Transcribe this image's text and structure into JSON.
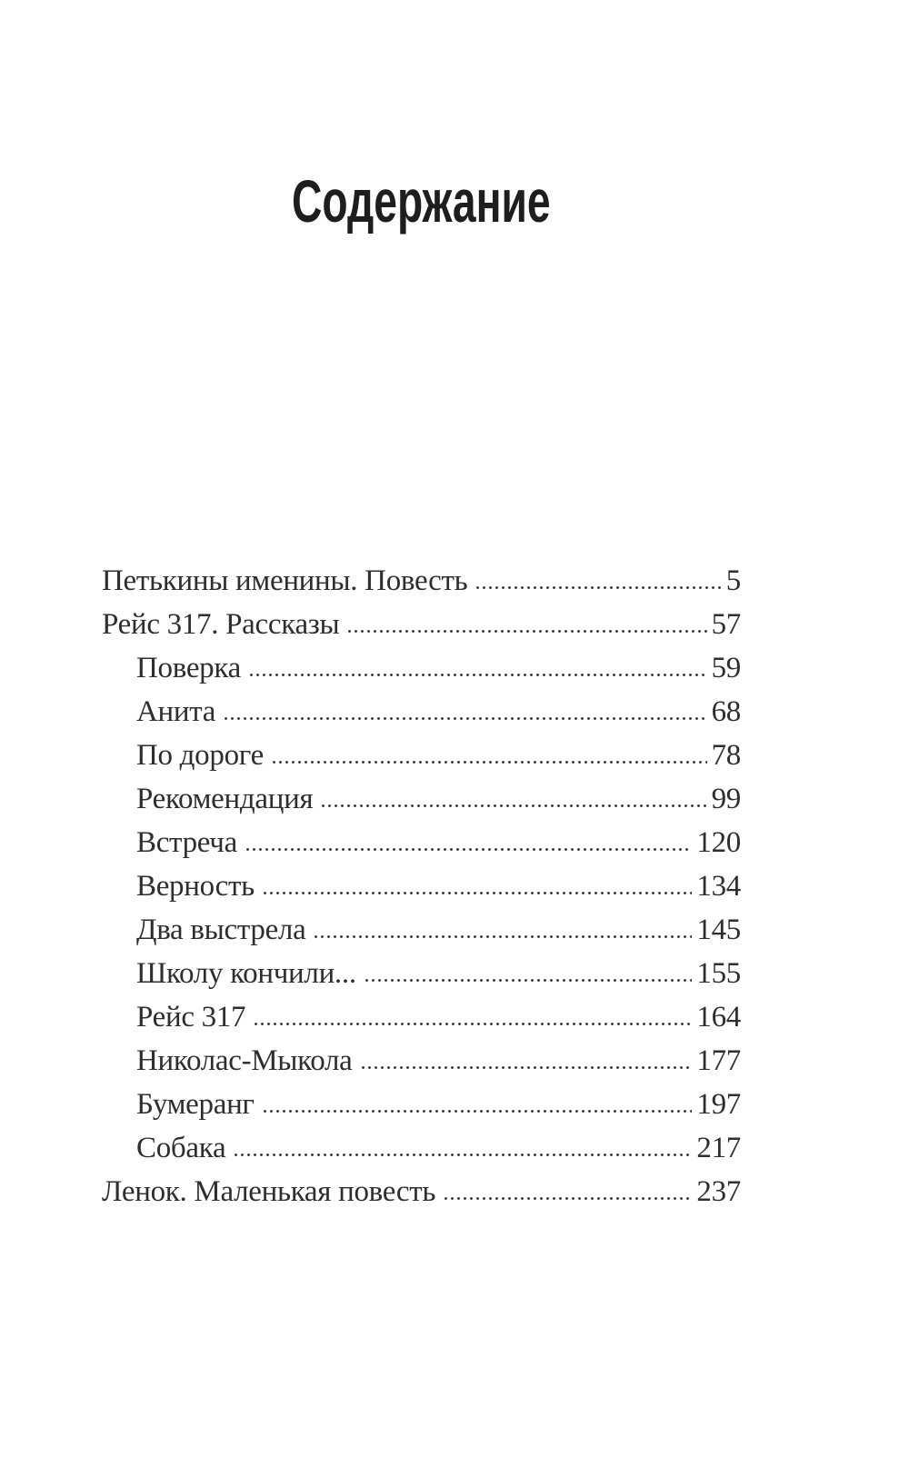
{
  "page": {
    "title": "Содержание",
    "background": "#ffffff",
    "text_color": "#2e2e2e",
    "title_color": "#1e1e1e"
  },
  "toc": {
    "entries": [
      {
        "label": "Петькины именины. Повесть",
        "page": "5",
        "level": 0
      },
      {
        "label": "Рейс 317. Рассказы",
        "page": "57",
        "level": 0
      },
      {
        "label": "Поверка",
        "page": "59",
        "level": 1
      },
      {
        "label": "Анита",
        "page": "68",
        "level": 1
      },
      {
        "label": "По дороге",
        "page": "78",
        "level": 1
      },
      {
        "label": "Рекомендация",
        "page": "99",
        "level": 1
      },
      {
        "label": "Встреча",
        "page": "120",
        "level": 1
      },
      {
        "label": "Верность",
        "page": "134",
        "level": 1
      },
      {
        "label": "Два выстрела",
        "page": "145",
        "level": 1
      },
      {
        "label": "Школу кончили...",
        "page": "155",
        "level": 1
      },
      {
        "label": "Рейс 317",
        "page": "164",
        "level": 1
      },
      {
        "label": "Николас-Мыкола",
        "page": "177",
        "level": 1
      },
      {
        "label": "Бумеранг",
        "page": "197",
        "level": 1
      },
      {
        "label": "Собака",
        "page": "217",
        "level": 1
      },
      {
        "label": "Ленок. Маленькая повесть",
        "page": "237",
        "level": 0
      }
    ]
  }
}
